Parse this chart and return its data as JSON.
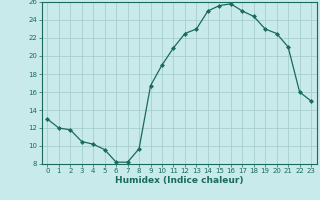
{
  "x": [
    0,
    1,
    2,
    3,
    4,
    5,
    6,
    7,
    8,
    9,
    10,
    11,
    12,
    13,
    14,
    15,
    16,
    17,
    18,
    19,
    20,
    21,
    22,
    23
  ],
  "y": [
    13,
    12,
    11.8,
    10.5,
    10.2,
    9.6,
    8.2,
    8.2,
    9.7,
    16.7,
    19.0,
    20.9,
    22.5,
    23.0,
    25.0,
    25.6,
    25.8,
    25.0,
    24.4,
    23.0,
    22.5,
    21.0,
    16.0,
    15.0
  ],
  "line_color": "#1a6b5a",
  "marker_color": "#1a6b5a",
  "bg_color": "#c8eaea",
  "grid_color": "#a0c8c8",
  "xlabel": "Humidex (Indice chaleur)",
  "ylim": [
    8,
    26
  ],
  "xlim": [
    -0.5,
    23.5
  ],
  "yticks": [
    8,
    10,
    12,
    14,
    16,
    18,
    20,
    22,
    24,
    26
  ],
  "xticks": [
    0,
    1,
    2,
    3,
    4,
    5,
    6,
    7,
    8,
    9,
    10,
    11,
    12,
    13,
    14,
    15,
    16,
    17,
    18,
    19,
    20,
    21,
    22,
    23
  ],
  "tick_fontsize": 5.0,
  "xlabel_fontsize": 6.5
}
